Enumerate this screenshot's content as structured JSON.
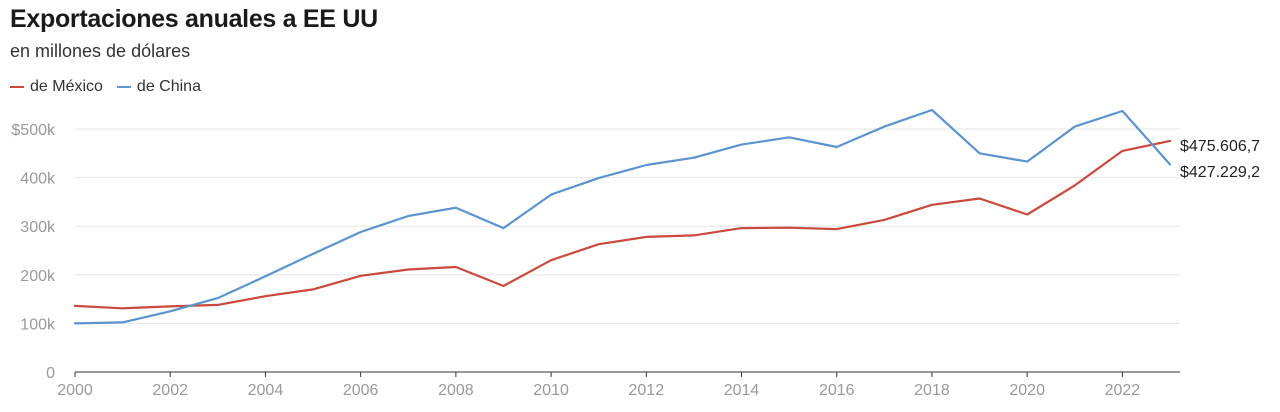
{
  "chart_data": {
    "type": "line",
    "title": "Exportaciones anuales a EE UU",
    "subtitle": "en millones de dólares",
    "x": [
      2000,
      2001,
      2002,
      2003,
      2004,
      2005,
      2006,
      2007,
      2008,
      2009,
      2010,
      2011,
      2012,
      2013,
      2014,
      2015,
      2016,
      2017,
      2018,
      2019,
      2020,
      2021,
      2022,
      2023
    ],
    "series": [
      {
        "name": "de México",
        "color": "#c94a3c",
        "values": [
          136000,
          131000,
          135000,
          138000,
          156000,
          170000,
          198000,
          211000,
          216000,
          177000,
          230000,
          263000,
          278000,
          281000,
          296000,
          297000,
          294000,
          313000,
          344000,
          357000,
          324000,
          384000,
          455000,
          475606.7
        ],
        "end_label": "$475.606,7"
      },
      {
        "name": "de China",
        "color": "#5b93cc",
        "values": [
          100000,
          102000,
          125000,
          152000,
          197000,
          243000,
          288000,
          321000,
          338000,
          296000,
          365000,
          399000,
          426000,
          441000,
          468000,
          483000,
          463000,
          505000,
          539000,
          450000,
          433000,
          505000,
          537000,
          427229.2
        ],
        "end_label": "$427.229,2"
      }
    ],
    "xticks": [
      "2000",
      "2002",
      "2004",
      "2006",
      "2008",
      "2010",
      "2012",
      "2014",
      "2016",
      "2018",
      "2020",
      "2022"
    ],
    "yticks": [
      {
        "value": 0,
        "label": "0"
      },
      {
        "value": 100000,
        "label": "100k"
      },
      {
        "value": 200000,
        "label": "200k"
      },
      {
        "value": 300000,
        "label": "300k"
      },
      {
        "value": 400000,
        "label": "400k"
      },
      {
        "value": 500000,
        "label": "$500k"
      }
    ],
    "ylim": [
      0,
      500000
    ],
    "xlim": [
      2000,
      2023
    ],
    "grid": true,
    "legend_position": "top-left"
  }
}
